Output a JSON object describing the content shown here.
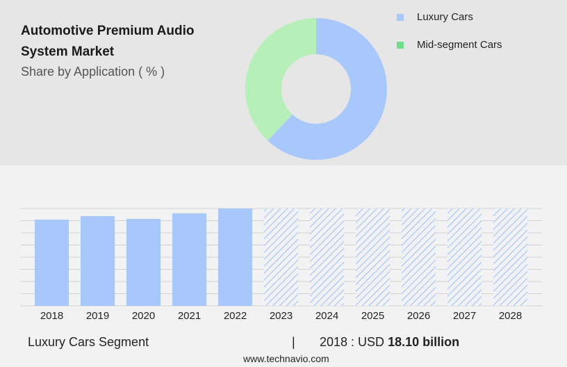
{
  "chart_data": [
    {
      "type": "pie",
      "title": "Automotive Premium Audio System Market",
      "subtitle": "Share by Application ( % )",
      "categories": [
        "Luxury Cars",
        "Mid-segment Cars"
      ],
      "values": [
        62,
        38
      ],
      "colors": [
        "#a8c8fc",
        "#b6f0b8"
      ],
      "legend_colors": [
        "#a8c8fc",
        "#6ddf8a"
      ]
    },
    {
      "type": "bar",
      "categories": [
        "2018",
        "2019",
        "2020",
        "2021",
        "2022",
        "2023",
        "2024",
        "2025",
        "2026",
        "2027",
        "2028"
      ],
      "values": [
        18.1,
        18.83,
        18.25,
        19.41,
        20.43,
        null,
        null,
        null,
        null,
        null,
        null
      ],
      "color": "#a8c8fc",
      "ylim": [
        0,
        20.43
      ],
      "grid": true
    }
  ],
  "footer": {
    "segment": "Luxury Cars Segment",
    "separator": "|",
    "year_label": "2018 : USD",
    "value_label": "18.10 billion",
    "source": "www.technavio.com"
  }
}
